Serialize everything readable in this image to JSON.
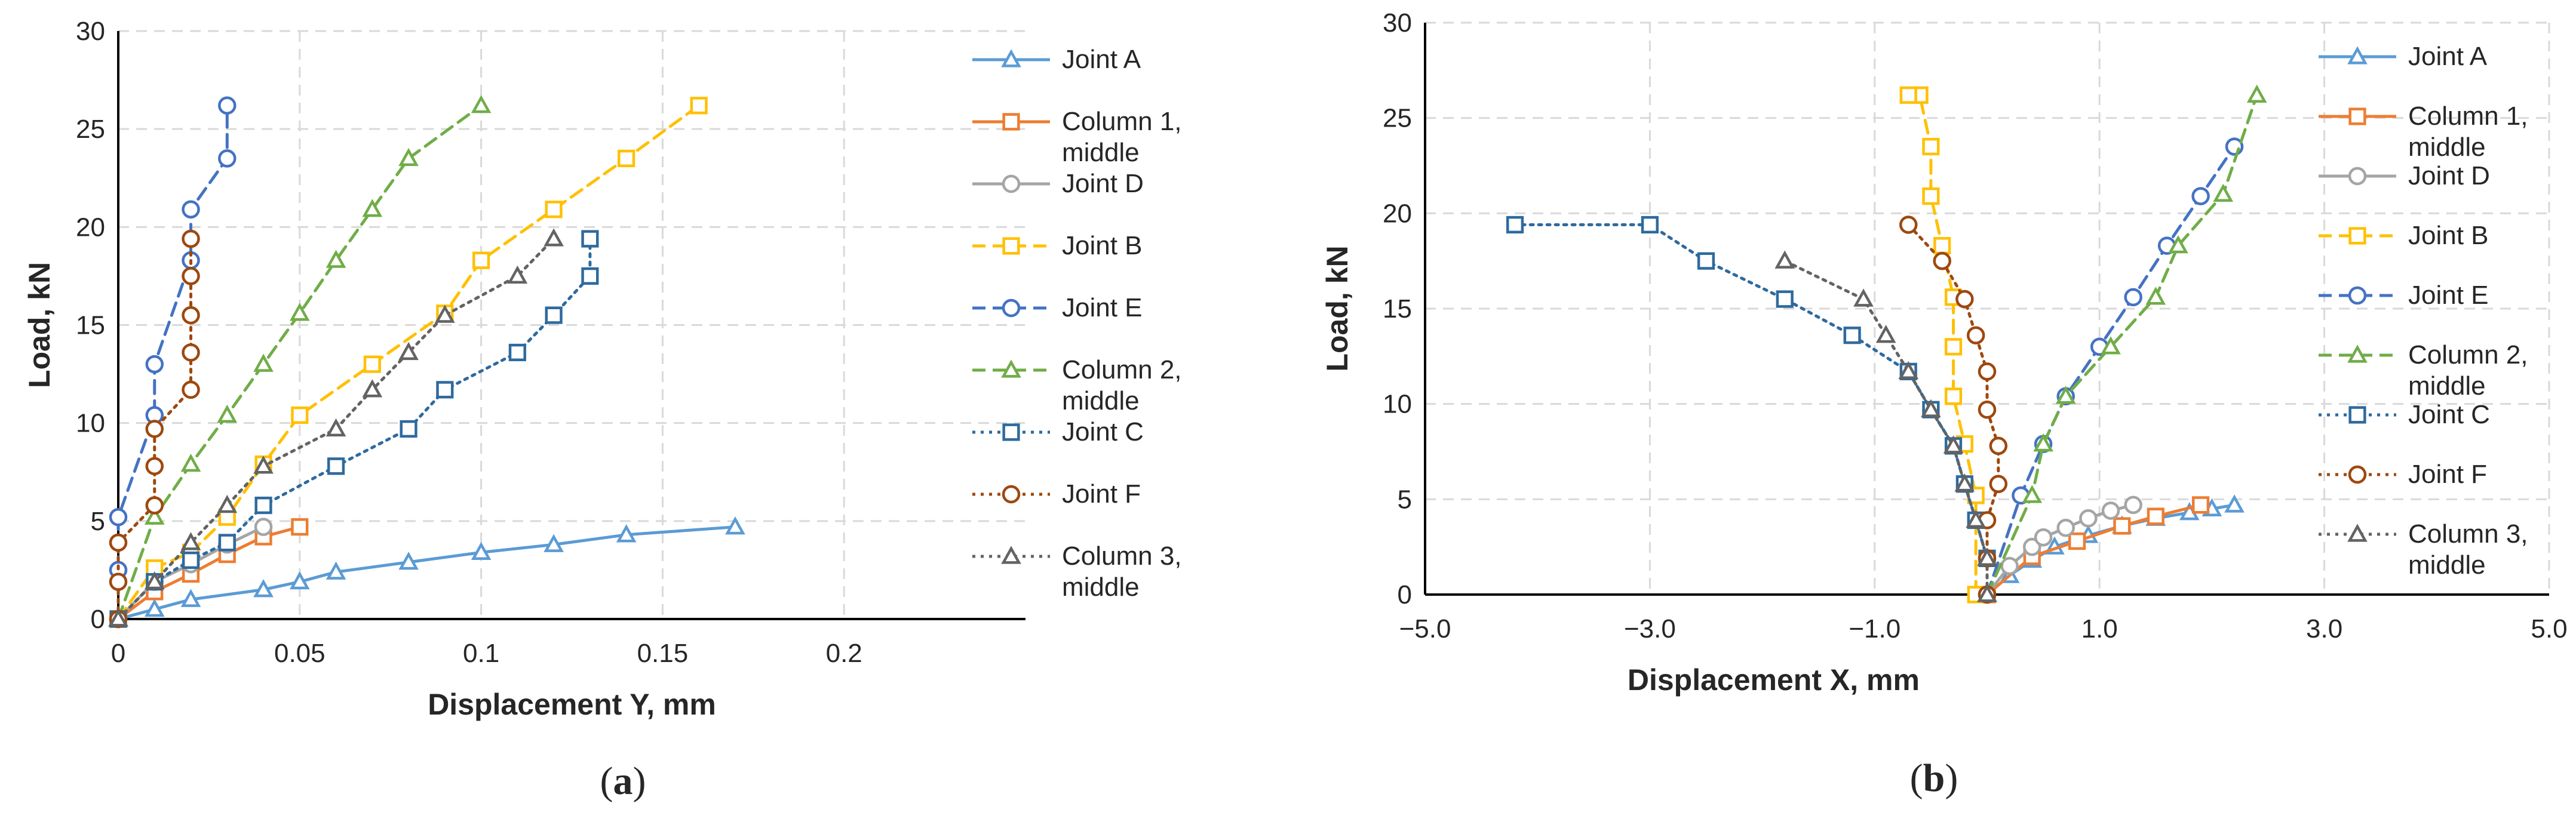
{
  "chart_data": [
    {
      "type": "line",
      "panel_label_open": "(",
      "panel_label_letter": "a",
      "panel_label_close": ")",
      "xlabel": "Displacement Y, mm",
      "ylabel": "Load, kN",
      "xlim": [
        0,
        0.25
      ],
      "ylim": [
        0,
        30
      ],
      "xticks": [
        0,
        0.05,
        0.1,
        0.15,
        0.2
      ],
      "xtick_labels": [
        "0",
        "0.05",
        "0.1",
        "0.15",
        "0.2"
      ],
      "yticks": [
        0,
        5,
        10,
        15,
        20,
        25,
        30
      ],
      "ytick_labels": [
        "0",
        "5",
        "10",
        "15",
        "20",
        "25",
        "30"
      ],
      "grid": true,
      "legend_position": "right",
      "series": [
        {
          "name": "Joint A",
          "color": "#5B9BD5",
          "dash": "solid",
          "marker": "triangle",
          "x": [
            0,
            0.01,
            0.02,
            0.04,
            0.05,
            0.06,
            0.08,
            0.1,
            0.12,
            0.14,
            0.17
          ],
          "y": [
            0,
            0.5,
            1.0,
            1.5,
            1.9,
            2.4,
            2.9,
            3.4,
            3.8,
            4.3,
            4.7
          ]
        },
        {
          "name": "Column 1, middle",
          "color": "#ED7D31",
          "dash": "solid",
          "marker": "square",
          "x": [
            0,
            0.01,
            0.02,
            0.03,
            0.04,
            0.05
          ],
          "y": [
            0,
            1.4,
            2.3,
            3.3,
            4.2,
            4.7
          ]
        },
        {
          "name": "Joint D",
          "color": "#A5A5A5",
          "dash": "solid",
          "marker": "circle",
          "x": [
            0,
            0.01,
            0.02,
            0.03,
            0.04
          ],
          "y": [
            0,
            1.9,
            2.8,
            3.8,
            4.7
          ]
        },
        {
          "name": "Joint B",
          "color": "#FFC000",
          "dash": "dash",
          "marker": "square",
          "x": [
            0,
            0.01,
            0.02,
            0.03,
            0.04,
            0.05,
            0.07,
            0.09,
            0.1,
            0.12,
            0.14,
            0.16
          ],
          "y": [
            0,
            2.6,
            3.4,
            5.2,
            7.9,
            10.4,
            13.0,
            15.6,
            18.3,
            20.9,
            23.5,
            26.2
          ]
        },
        {
          "name": "Joint E",
          "color": "#4472C4",
          "dash": "dash",
          "marker": "circle",
          "x": [
            0,
            0,
            0.01,
            0.01,
            0.02,
            0.02,
            0.03,
            0.03
          ],
          "y": [
            2.5,
            5.2,
            10.4,
            13.0,
            18.3,
            20.9,
            23.5,
            26.2
          ]
        },
        {
          "name": "Column 2, middle",
          "color": "#70AD47",
          "dash": "dash",
          "marker": "triangle",
          "x": [
            0,
            0.01,
            0.02,
            0.03,
            0.04,
            0.05,
            0.06,
            0.07,
            0.08,
            0.1
          ],
          "y": [
            0,
            5.2,
            7.9,
            10.4,
            13.0,
            15.6,
            18.3,
            20.9,
            23.5,
            26.2
          ]
        },
        {
          "name": "Joint C",
          "color": "#2E6A9E",
          "dash": "dot",
          "marker": "square",
          "x": [
            0,
            0.01,
            0.02,
            0.03,
            0.04,
            0.06,
            0.08,
            0.09,
            0.11,
            0.12,
            0.13,
            0.13
          ],
          "y": [
            0,
            1.9,
            3.0,
            3.9,
            5.8,
            7.8,
            9.7,
            11.7,
            13.6,
            15.5,
            17.5,
            19.4
          ]
        },
        {
          "name": "Joint F",
          "color": "#9E480E",
          "dash": "dot",
          "marker": "circle",
          "x": [
            0,
            0,
            0,
            0.01,
            0.01,
            0.01,
            0.02,
            0.02,
            0.02,
            0.02,
            0.02
          ],
          "y": [
            0,
            1.9,
            3.9,
            5.8,
            7.8,
            9.7,
            11.7,
            13.6,
            15.5,
            17.5,
            19.4
          ]
        },
        {
          "name": "Column 3, middle",
          "color": "#636363",
          "dash": "dot",
          "marker": "triangle",
          "x": [
            0,
            0.01,
            0.02,
            0.03,
            0.04,
            0.06,
            0.07,
            0.08,
            0.09,
            0.11,
            0.12
          ],
          "y": [
            0,
            1.9,
            3.9,
            5.8,
            7.8,
            9.7,
            11.7,
            13.6,
            15.5,
            17.5,
            19.4
          ]
        }
      ]
    },
    {
      "type": "line",
      "panel_label_open": "(",
      "panel_label_letter": "b",
      "panel_label_close": ")",
      "xlabel": "Displacement X, mm",
      "ylabel": "Load, kN",
      "xlim": [
        -5,
        5
      ],
      "ylim": [
        0,
        30
      ],
      "xticks": [
        -5,
        -3,
        -1,
        1,
        3,
        5
      ],
      "xtick_labels": [
        "−5.0",
        "−3.0",
        "−1.0",
        "1.0",
        "3.0",
        "5.0"
      ],
      "yticks": [
        0,
        5,
        10,
        15,
        20,
        25,
        30
      ],
      "ytick_labels": [
        "0",
        "5",
        "10",
        "15",
        "20",
        "25",
        "30"
      ],
      "grid": true,
      "legend_position": "right",
      "series": [
        {
          "name": "Joint A",
          "color": "#5B9BD5",
          "dash": "solid",
          "marker": "triangle",
          "x": [
            0,
            0.2,
            0.4,
            0.6,
            0.9,
            1.2,
            1.5,
            1.8,
            2.0,
            2.2
          ],
          "y": [
            0,
            1.0,
            1.8,
            2.5,
            3.1,
            3.6,
            4.0,
            4.3,
            4.5,
            4.7
          ]
        },
        {
          "name": "Column 1, middle",
          "color": "#ED7D31",
          "dash": "solid",
          "marker": "square",
          "x": [
            0,
            0.4,
            0.8,
            1.2,
            1.5,
            1.9
          ],
          "y": [
            0,
            2.0,
            2.8,
            3.6,
            4.1,
            4.7
          ]
        },
        {
          "name": "Joint D",
          "color": "#A5A5A5",
          "dash": "solid",
          "marker": "circle",
          "x": [
            0,
            0.2,
            0.4,
            0.5,
            0.7,
            0.9,
            1.1,
            1.3
          ],
          "y": [
            0,
            1.5,
            2.5,
            3.0,
            3.5,
            4.0,
            4.4,
            4.7
          ]
        },
        {
          "name": "Joint B",
          "color": "#FFC000",
          "dash": "dash",
          "marker": "square",
          "x": [
            -0.1,
            -0.1,
            -0.2,
            -0.3,
            -0.3,
            -0.3,
            -0.4,
            -0.5,
            -0.5,
            -0.6,
            -0.7
          ],
          "y": [
            0,
            5.2,
            7.9,
            10.4,
            13.0,
            15.6,
            18.3,
            20.9,
            23.5,
            26.2,
            26.2
          ]
        },
        {
          "name": "Joint E",
          "color": "#4472C4",
          "dash": "dash",
          "marker": "circle",
          "x": [
            0,
            0.3,
            0.5,
            0.7,
            1.0,
            1.3,
            1.6,
            1.9,
            2.2
          ],
          "y": [
            0,
            5.2,
            7.9,
            10.4,
            13.0,
            15.6,
            18.3,
            20.9,
            23.5
          ]
        },
        {
          "name": "Column 2, middle",
          "color": "#70AD47",
          "dash": "dash",
          "marker": "triangle",
          "x": [
            0,
            0.4,
            0.5,
            0.7,
            1.1,
            1.5,
            1.7,
            2.1,
            2.4
          ],
          "y": [
            0,
            5.2,
            7.9,
            10.4,
            13.0,
            15.6,
            18.3,
            21.0,
            26.2
          ]
        },
        {
          "name": "Joint C",
          "color": "#2E6A9E",
          "dash": "dot",
          "marker": "square",
          "x": [
            0,
            -0.1,
            -0.2,
            -0.3,
            -0.5,
            -0.7,
            -1.2,
            -1.8,
            -2.5,
            -3.0,
            -4.2
          ],
          "y": [
            1.9,
            3.9,
            5.8,
            7.8,
            9.7,
            11.7,
            13.6,
            15.5,
            17.5,
            19.4,
            19.4
          ]
        },
        {
          "name": "Joint F",
          "color": "#9E480E",
          "dash": "dot",
          "marker": "circle",
          "x": [
            0,
            0,
            0,
            0.1,
            0.1,
            0,
            0,
            -0.1,
            -0.2,
            -0.4,
            -0.7
          ],
          "y": [
            0,
            1.9,
            3.9,
            5.8,
            7.8,
            9.7,
            11.7,
            13.6,
            15.5,
            17.5,
            19.4
          ]
        },
        {
          "name": "Column 3, middle",
          "color": "#636363",
          "dash": "dot",
          "marker": "triangle",
          "x": [
            0,
            0,
            -0.1,
            -0.2,
            -0.3,
            -0.5,
            -0.7,
            -0.9,
            -1.1,
            -1.8
          ],
          "y": [
            0,
            1.9,
            3.9,
            5.8,
            7.8,
            9.7,
            11.7,
            13.6,
            15.5,
            17.5
          ]
        }
      ]
    }
  ]
}
